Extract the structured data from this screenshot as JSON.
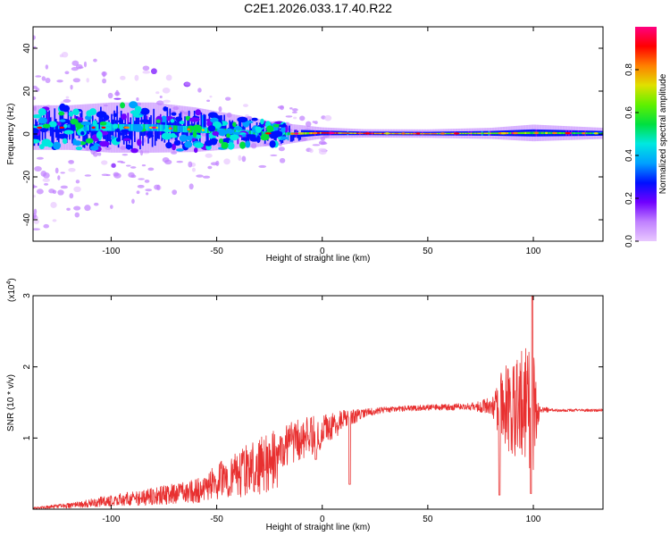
{
  "title": "C2E1.2026.033.17.40.R22",
  "chart_data": [
    {
      "type": "heatmap",
      "name": "spectrogram",
      "xlabel": "Height of straight line (km)",
      "ylabel": "Frequency (Hz)",
      "xlim": [
        -137,
        133
      ],
      "ylim": [
        -50,
        50
      ],
      "xticks": [
        -100,
        -50,
        0,
        50,
        100
      ],
      "xtick_labels": [
        "-100",
        "-50",
        "0",
        "50",
        "100"
      ],
      "yticks": [
        -40,
        -20,
        0,
        20,
        40
      ],
      "ytick_labels": [
        "-40",
        "-20",
        "0",
        "20",
        "40"
      ],
      "colorbar": {
        "label": "Normalized spectral amplitude",
        "range": [
          0,
          1
        ],
        "ticks": [
          0.0,
          0.2,
          0.4,
          0.6,
          0.8
        ],
        "tick_labels": [
          "0.0",
          "0.2",
          "0.4",
          "0.6",
          "0.8"
        ],
        "colors": [
          "#e8c8ff",
          "#c080ff",
          "#7000ff",
          "#0010ff",
          "#00a0ff",
          "#00e8e0",
          "#00e040",
          "#60f000",
          "#e0e000",
          "#ff8000",
          "#ff0000",
          "#ff0080"
        ]
      },
      "ridge": {
        "x": [
          -137,
          -120,
          -100,
          -80,
          -60,
          -40,
          -20,
          0,
          20,
          50,
          80,
          100,
          133
        ],
        "center_hz": [
          3,
          3,
          3,
          3,
          2,
          1,
          0,
          0.5,
          0.3,
          0.2,
          0.3,
          0.5,
          0.3
        ],
        "halfwidth_hz": [
          8,
          8,
          9,
          9,
          8,
          6,
          4,
          2,
          1.5,
          1.5,
          2,
          3,
          2
        ],
        "peak_amplitude": [
          0.35,
          0.4,
          0.45,
          0.5,
          0.55,
          0.5,
          0.45,
          0.9,
          0.85,
          0.8,
          0.7,
          0.65,
          0.55
        ]
      }
    },
    {
      "type": "line",
      "name": "snr",
      "xlabel": "Height of straight line (km)",
      "ylabel": "SNR (10 * v/v)",
      "multiplier_label": "(x10",
      "multiplier_exponent": "4",
      "multiplier_close": ")",
      "xlim": [
        -137,
        133
      ],
      "ylim": [
        0,
        3
      ],
      "xticks": [
        -100,
        -50,
        0,
        50,
        100
      ],
      "xtick_labels": [
        "-100",
        "-50",
        "0",
        "50",
        "100"
      ],
      "yticks": [
        1,
        2,
        3
      ],
      "ytick_labels": [
        "1",
        "2",
        "3"
      ],
      "color": "#e83030",
      "envelope": {
        "x": [
          -137,
          -120,
          -100,
          -80,
          -60,
          -50,
          -40,
          -30,
          -20,
          -10,
          0,
          10,
          20,
          30,
          50,
          70,
          80,
          85,
          90,
          95,
          100,
          103,
          110,
          133
        ],
        "mean": [
          0.01,
          0.05,
          0.12,
          0.2,
          0.28,
          0.38,
          0.55,
          0.7,
          0.85,
          0.98,
          1.1,
          1.25,
          1.35,
          1.4,
          1.43,
          1.44,
          1.45,
          1.45,
          1.42,
          1.45,
          1.42,
          1.4,
          1.39,
          1.39
        ],
        "noise": [
          0.02,
          0.04,
          0.08,
          0.1,
          0.14,
          0.25,
          0.3,
          0.3,
          0.3,
          0.3,
          0.25,
          0.15,
          0.06,
          0.04,
          0.04,
          0.05,
          0.12,
          0.5,
          0.7,
          0.8,
          0.9,
          0.05,
          0.02,
          0.02
        ]
      },
      "peak": {
        "x": 99.5,
        "y": 3.0
      },
      "dips": [
        {
          "x": -27,
          "y": 0.55
        },
        {
          "x": -3,
          "y": 0.7
        },
        {
          "x": 13,
          "y": 0.35
        },
        {
          "x": 84,
          "y": 0.2
        },
        {
          "x": 99,
          "y": 0.22
        }
      ]
    }
  ]
}
